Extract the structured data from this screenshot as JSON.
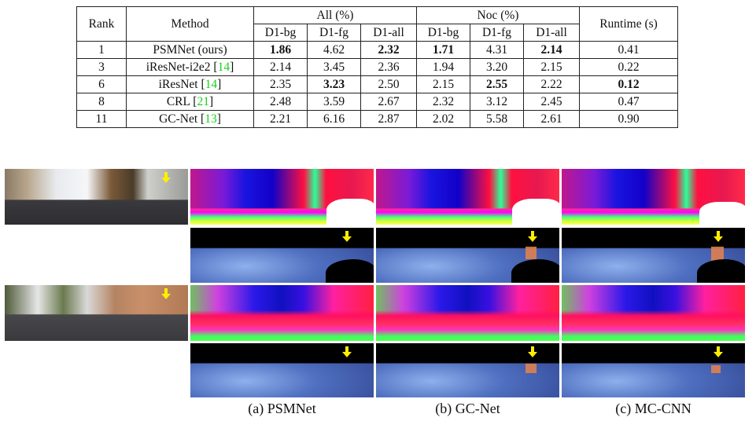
{
  "table": {
    "headers": {
      "rank": "Rank",
      "method": "Method",
      "group_all": "All (%)",
      "group_noc": "Noc (%)",
      "runtime": "Runtime (s)",
      "sub": [
        "D1-bg",
        "D1-fg",
        "D1-all",
        "D1-bg",
        "D1-fg",
        "D1-all"
      ]
    },
    "rows": [
      {
        "rank": "1",
        "method": "PSMNet (ours)",
        "cite": "",
        "all_bg": "1.86",
        "all_fg": "4.62",
        "all_all": "2.32",
        "noc_bg": "1.71",
        "noc_fg": "4.31",
        "noc_all": "2.14",
        "runtime": "0.41"
      },
      {
        "rank": "3",
        "method": "iResNet-i2e2",
        "cite": "14",
        "all_bg": "2.14",
        "all_fg": "3.45",
        "all_all": "2.36",
        "noc_bg": "1.94",
        "noc_fg": "3.20",
        "noc_all": "2.15",
        "runtime": "0.22"
      },
      {
        "rank": "6",
        "method": "iResNet",
        "cite": "14",
        "all_bg": "2.35",
        "all_fg": "3.23",
        "all_all": "2.50",
        "noc_bg": "2.15",
        "noc_fg": "2.55",
        "noc_all": "2.22",
        "runtime": "0.12"
      },
      {
        "rank": "8",
        "method": "CRL",
        "cite": "21",
        "all_bg": "2.48",
        "all_fg": "3.59",
        "all_all": "2.67",
        "noc_bg": "2.32",
        "noc_fg": "3.12",
        "noc_all": "2.45",
        "runtime": "0.47"
      },
      {
        "rank": "11",
        "method": "GC-Net",
        "cite": "13",
        "all_bg": "2.21",
        "all_fg": "6.16",
        "all_all": "2.87",
        "noc_bg": "2.02",
        "noc_fg": "5.58",
        "noc_all": "2.61",
        "runtime": "0.90"
      }
    ],
    "bold_cells": [
      "0.all_bg",
      "0.all_all",
      "0.noc_bg",
      "0.noc_all",
      "2.all_fg",
      "2.noc_fg",
      "2.runtime"
    ],
    "cite_color": "#1ad11a"
  },
  "figure": {
    "captions": [
      "(a) PSMNet",
      "(b) GC-Net",
      "(c) MC-CNN"
    ],
    "arrow_color": "#ffee00"
  }
}
